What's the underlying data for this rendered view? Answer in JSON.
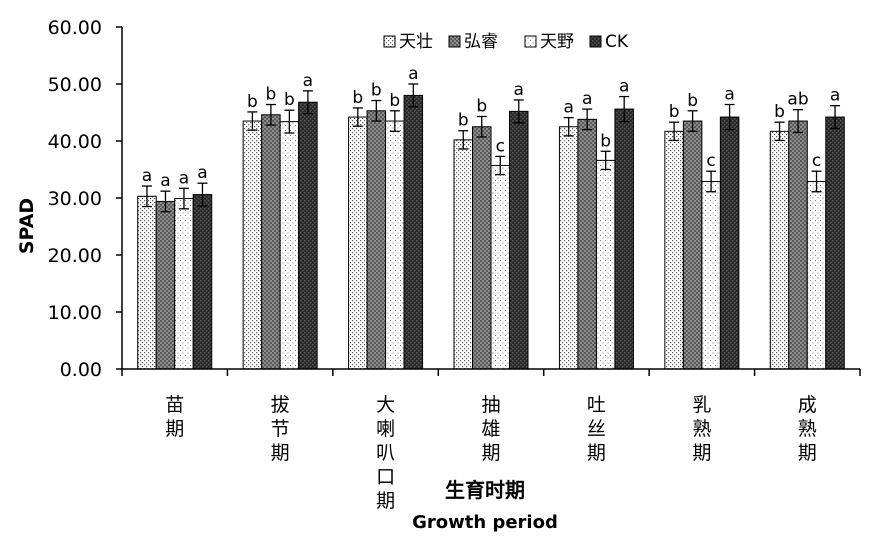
{
  "chart_data": {
    "type": "bar",
    "ylabel": "SPAD",
    "xlabel": "生育时期",
    "xlabel_en": "Growth period",
    "ylim": [
      0,
      60
    ],
    "yticks": [
      "0.00",
      "10.00",
      "20.00",
      "30.00",
      "40.00",
      "50.00",
      "60.00"
    ],
    "legend_position": "top-center",
    "categories": [
      "苗期",
      "拔节期",
      "大喇叭口期",
      "抽雄期",
      "吐丝期",
      "乳熟期",
      "成熟期"
    ],
    "series": [
      {
        "name": "天壮",
        "pattern": "dots-fine",
        "values": [
          30.3,
          43.5,
          44.2,
          40.2,
          42.5,
          41.7,
          41.7
        ],
        "errors": [
          1.8,
          1.6,
          1.6,
          1.6,
          1.6,
          1.6,
          1.6
        ],
        "labels": [
          "a",
          "b",
          "b",
          "b",
          "a",
          "b",
          "b"
        ]
      },
      {
        "name": "弘睿",
        "pattern": "gray-check",
        "values": [
          29.4,
          44.6,
          45.3,
          42.5,
          43.8,
          43.5,
          43.5
        ],
        "errors": [
          1.8,
          1.8,
          1.8,
          1.8,
          1.8,
          1.8,
          2.0
        ],
        "labels": [
          "a",
          "b",
          "b",
          "b",
          "a",
          "b",
          "ab"
        ]
      },
      {
        "name": "天野",
        "pattern": "dots-sparse",
        "values": [
          29.9,
          43.4,
          43.5,
          35.7,
          36.6,
          32.9,
          32.9
        ],
        "errors": [
          1.8,
          2.0,
          1.8,
          1.6,
          1.6,
          1.8,
          1.8
        ],
        "labels": [
          "a",
          "b",
          "b",
          "c",
          "b",
          "c",
          "c"
        ]
      },
      {
        "name": "CK",
        "pattern": "dark-check",
        "values": [
          30.6,
          46.8,
          48.0,
          45.2,
          45.6,
          44.2,
          44.2
        ],
        "errors": [
          2.0,
          2.0,
          2.0,
          2.0,
          2.2,
          2.2,
          2.0
        ],
        "labels": [
          "a",
          "a",
          "a",
          "a",
          "a",
          "a",
          "a"
        ]
      }
    ]
  }
}
